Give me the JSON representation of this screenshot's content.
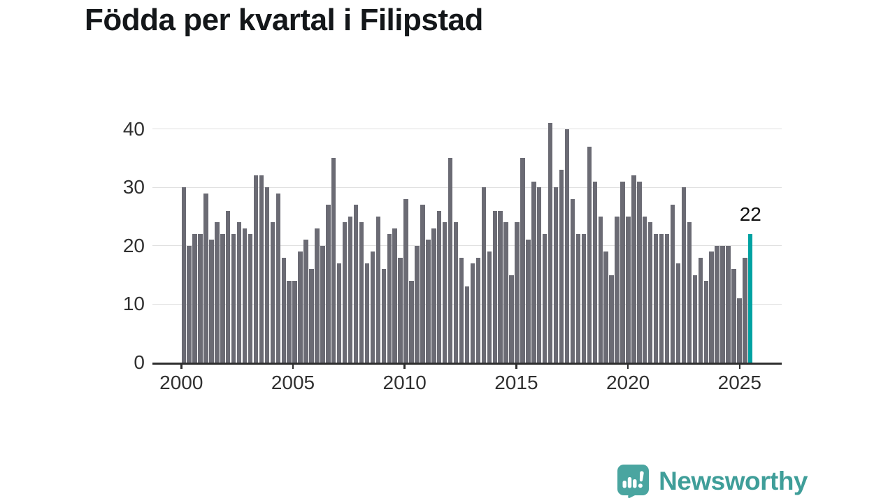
{
  "header": {
    "title": "Födda per kvartal i Filipstad"
  },
  "chart_data": {
    "type": "bar",
    "title": "Födda per kvartal i Filipstad",
    "description": "Number of births per quarter in Filipstad",
    "frequency": "quarterly",
    "start_period": "2000-Q1",
    "end_period": "2025-Q3",
    "values": [
      30,
      20,
      22,
      22,
      29,
      21,
      24,
      22,
      26,
      22,
      24,
      23,
      22,
      32,
      32,
      30,
      24,
      29,
      18,
      14,
      14,
      19,
      21,
      16,
      23,
      20,
      27,
      35,
      17,
      24,
      25,
      27,
      24,
      17,
      19,
      25,
      16,
      22,
      23,
      18,
      28,
      14,
      20,
      27,
      21,
      23,
      26,
      24,
      35,
      24,
      18,
      13,
      17,
      18,
      30,
      19,
      26,
      26,
      24,
      15,
      24,
      35,
      21,
      31,
      30,
      22,
      41,
      30,
      33,
      40,
      28,
      22,
      22,
      37,
      31,
      25,
      19,
      15,
      25,
      31,
      25,
      32,
      31,
      25,
      24,
      22,
      22,
      22,
      27,
      17,
      30,
      24,
      15,
      18,
      14,
      19,
      20,
      20,
      20,
      16,
      11,
      18,
      22
    ],
    "y_ticks": [
      0,
      10,
      20,
      30,
      40
    ],
    "ylim": [
      0,
      42
    ],
    "x_tick_labels": [
      "2000",
      "2005",
      "2010",
      "2015",
      "2020",
      "2025"
    ],
    "grid": "horizontal",
    "legend": "none",
    "highlight": {
      "index": 102,
      "label": "22",
      "color": "#00a2a2"
    },
    "bar_color": "#6b6b74",
    "gridline_color": "#e0e0e0",
    "axis_color": "#2e2e2e",
    "tick_label_color": "#303030"
  },
  "footer": {
    "brand": "Newsworthy",
    "brand_color": "#3f9e99",
    "icon": "newsworthy-speech-bubble-chart-icon",
    "icon_color": "#4aa5a0"
  }
}
